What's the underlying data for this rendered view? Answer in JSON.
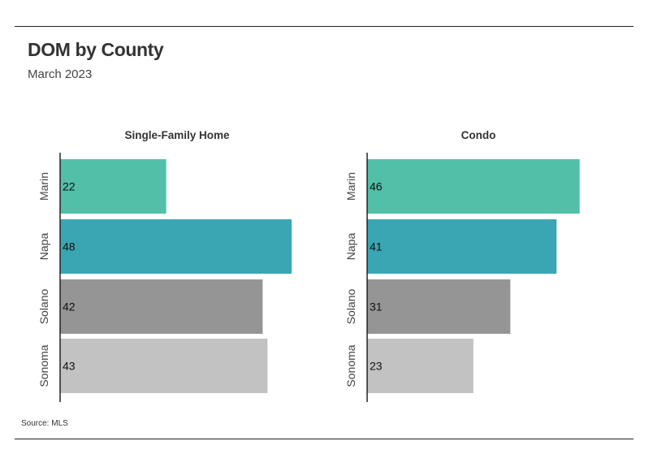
{
  "title": "DOM by County",
  "subtitle": "March 2023",
  "source": "Source:  MLS",
  "colors": {
    "Marin": "#52bfa9",
    "Napa": "#3aa6b3",
    "Solano": "#959595",
    "Sonoma": "#c2c2c2"
  },
  "chart_data": [
    {
      "type": "bar",
      "orientation": "horizontal",
      "title": "Single-Family Home",
      "categories": [
        "Marin",
        "Napa",
        "Solano",
        "Sonoma"
      ],
      "values": [
        22,
        48,
        42,
        43
      ],
      "xlim": [
        0,
        48
      ]
    },
    {
      "type": "bar",
      "orientation": "horizontal",
      "title": "Condo",
      "categories": [
        "Marin",
        "Napa",
        "Solano",
        "Sonoma"
      ],
      "values": [
        46,
        41,
        31,
        23
      ],
      "xlim": [
        0,
        48
      ]
    }
  ]
}
